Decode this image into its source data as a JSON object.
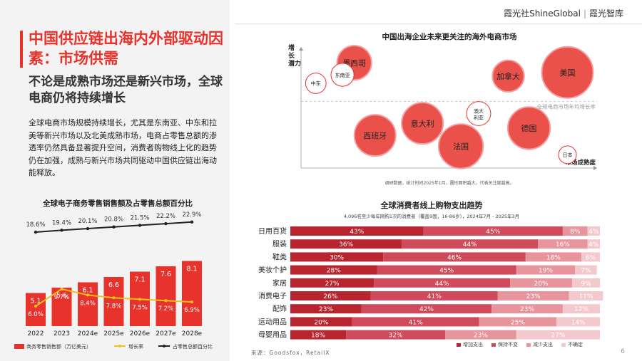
{
  "brand": {
    "name": "霞光社",
    "name_en": "ShineGlobal",
    "sub": "霞光智库"
  },
  "headline": "中国供应链出海内外部驱动因素：市场供需",
  "subheadline": "不论是成熟市场还是新兴市场，全球电商仍将持续增长",
  "body": "全球电商市场规模持续增长，尤其是东南亚、中东和拉美等新兴市场以及北美成熟市场，电商占零售总额的渗透率仍然具备显著提升空间，消费者购物线上化的趋势仍在加强，成熟与新兴市场共同驱动中国供应链出海动能释放。",
  "page_number": "6",
  "source": "来源：Goodsfox，RetailX",
  "colors": {
    "accent": "#e8322c",
    "dark_red": "#b8252f",
    "mid_red": "#cf4a5a",
    "pink": "#e8949c",
    "light_pink": "#f3c9cd"
  },
  "chart_data": [
    {
      "type": "bar",
      "title": "全球电子商务零售销售额及占零售总额百分比",
      "categories": [
        "2022",
        "2023",
        "2024e",
        "2025e",
        "2026e",
        "2027e",
        "2028e"
      ],
      "series": [
        {
          "name": "商务零售销售额（万亿美元）",
          "type": "bar",
          "values": [
            5.1,
            5.6,
            6.1,
            6.6,
            7.1,
            7.6,
            8.1
          ],
          "labels": [
            "5.1",
            "5.6",
            "6.1",
            "6.6",
            "7.1",
            "7.6",
            "8.1"
          ]
        },
        {
          "name": "增长率",
          "type": "line",
          "values": [
            6.0,
            9.7,
            8.4,
            7.8,
            7.5,
            7.2,
            6.9
          ],
          "labels": [
            "6.0%",
            "9.7%",
            "8.4%",
            "7.8%",
            "7.5%",
            "7.2%",
            "6.9%"
          ]
        },
        {
          "name": "占零售总额百分比",
          "type": "line",
          "values": [
            18.6,
            19.4,
            20.1,
            20.8,
            21.5,
            22.2,
            22.9
          ],
          "labels": [
            "18.6%",
            "19.4%",
            "20.1%",
            "20.8%",
            "21.5%",
            "22.2%",
            "22.9%"
          ]
        }
      ],
      "legend_position": "bottom"
    },
    {
      "type": "scatter",
      "title": "中国出海企业未来更关注的海外电商市场",
      "xlabel": "市场成熟度",
      "ylabel": "增长潜力",
      "reference_line": "全球电商市场年均增长率",
      "note": "调研数据，统计时间2025年1月，圆形面积越大，代表关注度越高。",
      "points": [
        {
          "name": "墨西哥",
          "x": 1.8,
          "y": 8.7,
          "size": 0.45
        },
        {
          "name": "东南亚",
          "x": 1.4,
          "y": 7.7,
          "size": 0.2
        },
        {
          "name": "中东",
          "x": 0.5,
          "y": 7.0,
          "size": 0.16
        },
        {
          "name": "美国",
          "x": 9.0,
          "y": 7.9,
          "size": 1.0
        },
        {
          "name": "加拿大",
          "x": 7.0,
          "y": 7.6,
          "size": 0.38
        },
        {
          "name": "澳大利亚",
          "x": 6.0,
          "y": 4.5,
          "size": 0.22
        },
        {
          "name": "意大利",
          "x": 4.1,
          "y": 3.7,
          "size": 0.65
        },
        {
          "name": "西班牙",
          "x": 2.5,
          "y": 2.7,
          "size": 0.65
        },
        {
          "name": "德国",
          "x": 7.7,
          "y": 3.3,
          "size": 0.68
        },
        {
          "name": "法国",
          "x": 5.4,
          "y": 1.8,
          "size": 0.75
        },
        {
          "name": "日本",
          "x": 9.0,
          "y": 1.1,
          "size": 0.12
        }
      ]
    },
    {
      "type": "bar",
      "orientation": "horizontal-stacked",
      "title": "全球消费者线上购物支出趋势",
      "subtitle": "4,096名至少每年网购1次的消费者（覆盖9国，16-86岁），2024年7月 - 2025年3月",
      "categories": [
        "日用百货",
        "服装",
        "鞋类",
        "美妆个护",
        "家居",
        "消费电子",
        "配饰",
        "运动用品",
        "母婴用品"
      ],
      "series": [
        {
          "name": "增加支出",
          "values": [
            43,
            36,
            30,
            28,
            27,
            26,
            23,
            20,
            18
          ]
        },
        {
          "name": "保持不变",
          "values": [
            45,
            44,
            46,
            45,
            44,
            41,
            42,
            41,
            32
          ]
        },
        {
          "name": "减少支出",
          "values": [
            8,
            16,
            18,
            19,
            20,
            23,
            23,
            25,
            23
          ]
        },
        {
          "name": "不确定",
          "values": [
            4,
            4,
            6,
            7,
            9,
            11,
            12,
            14,
            27
          ]
        }
      ],
      "legend_position": "bottom-right"
    }
  ]
}
